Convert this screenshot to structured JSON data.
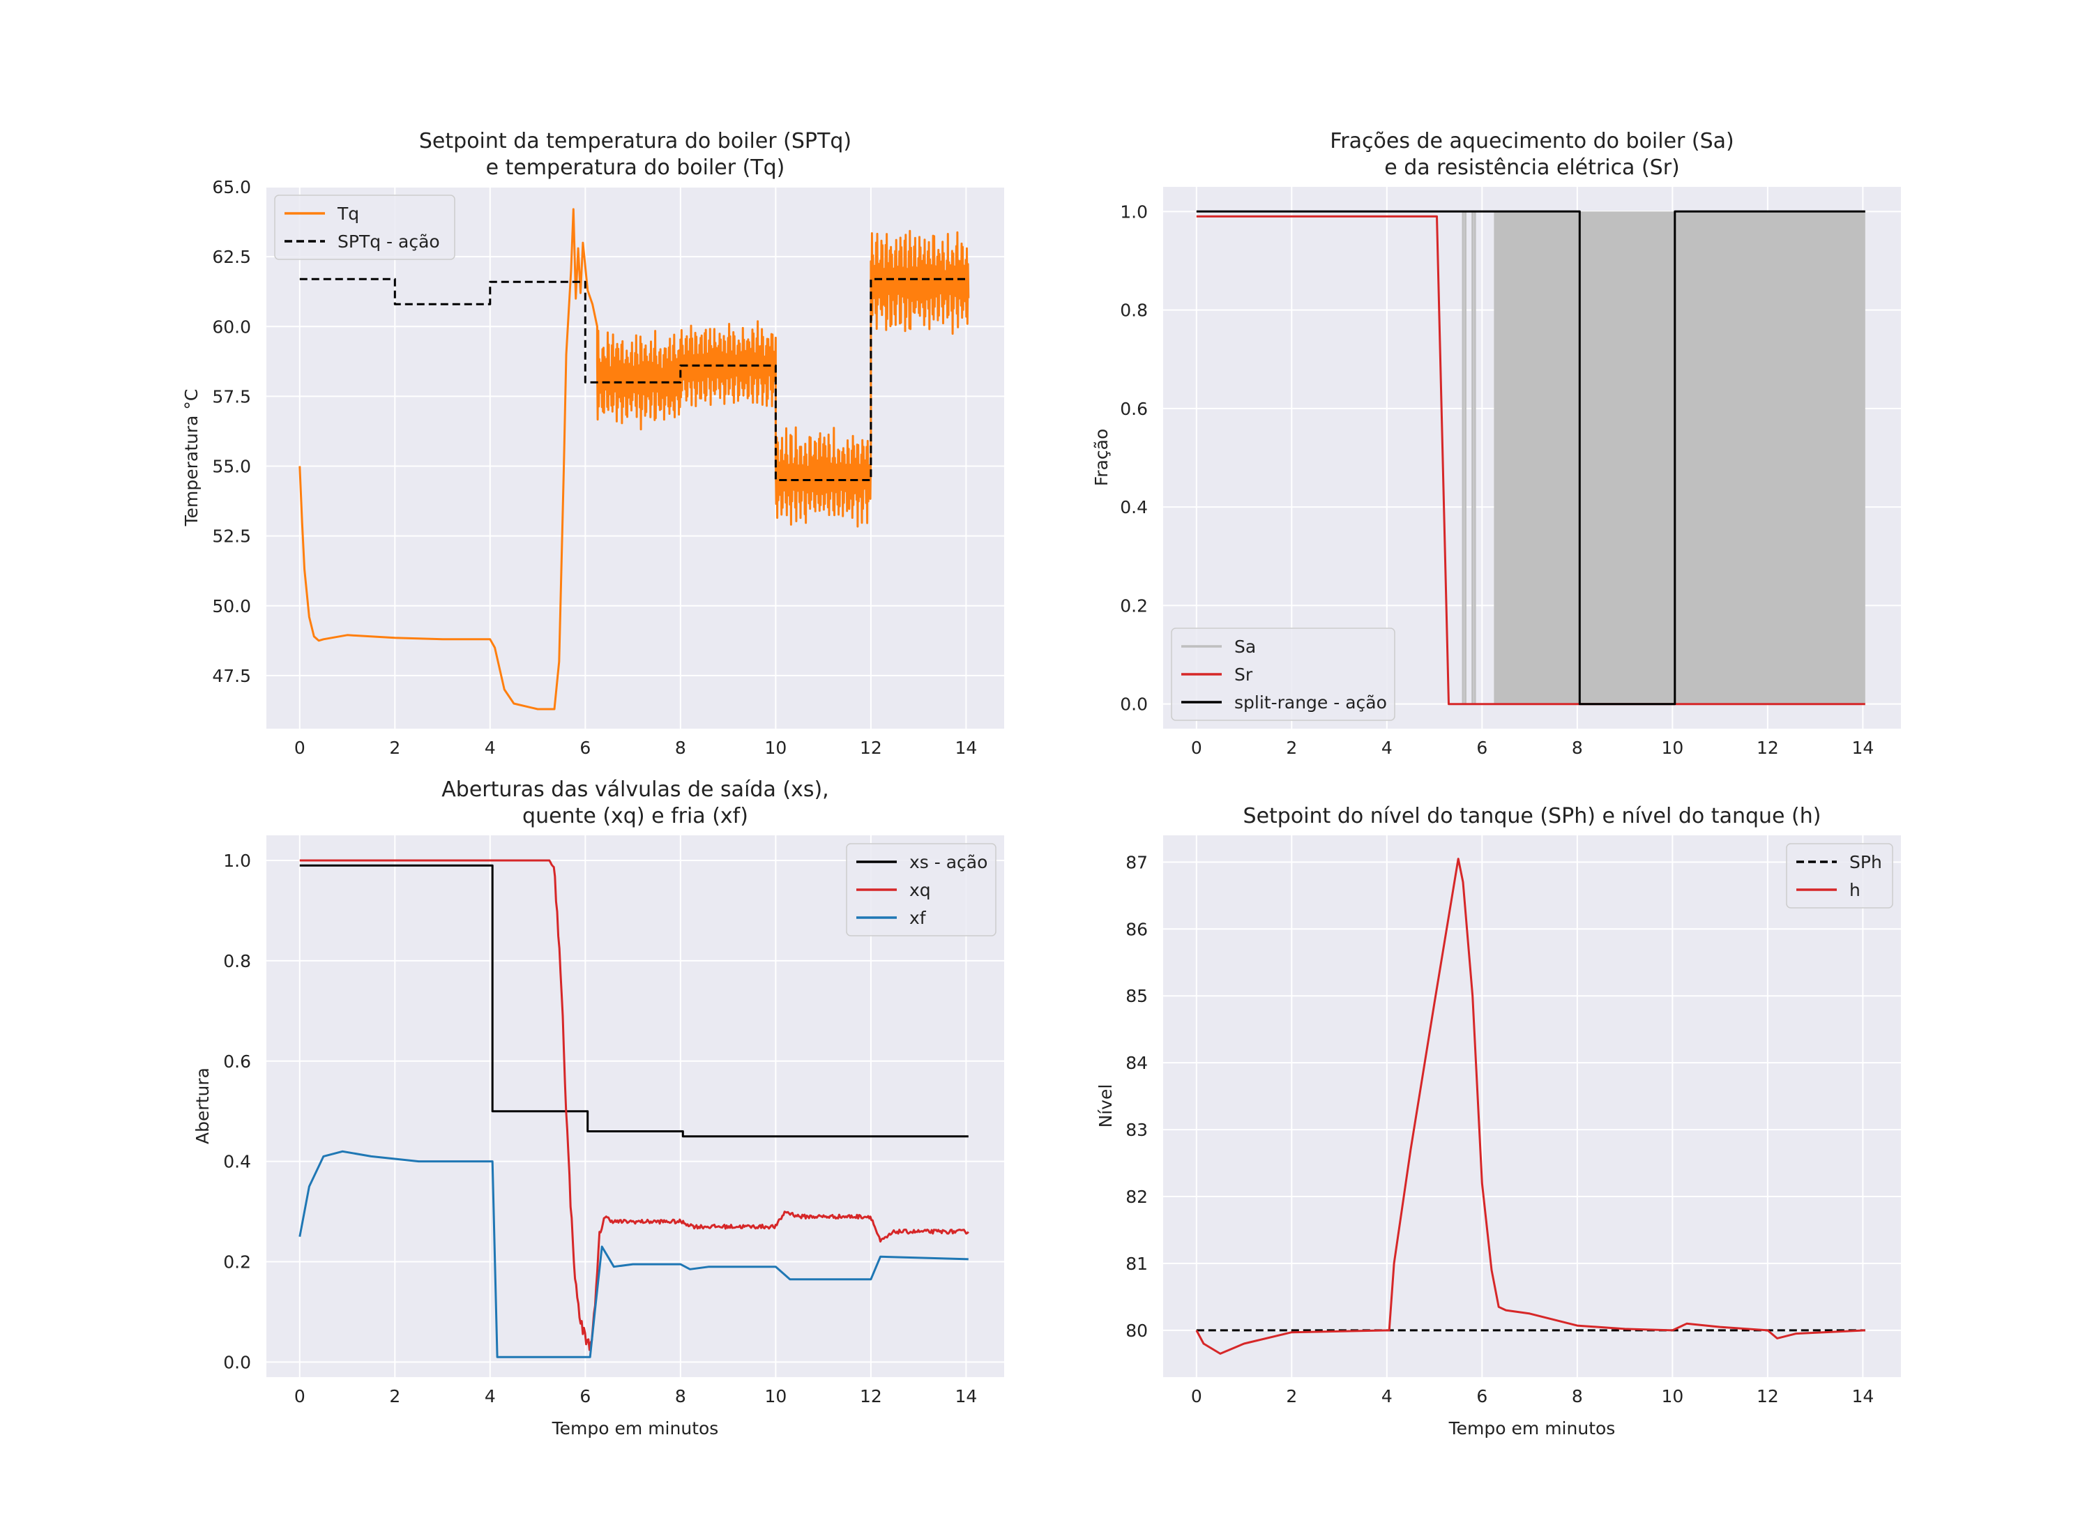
{
  "chart_data": [
    {
      "type": "line",
      "title": [
        "Setpoint da temperatura do boiler (SPTq)",
        "e temperatura do boiler (Tq)"
      ],
      "xlabel": "",
      "ylabel": "Temperatura °C",
      "xlim": [
        -0.7,
        14.8
      ],
      "ylim": [
        45.6,
        65.0
      ],
      "xticks": [
        0,
        2,
        4,
        6,
        8,
        10,
        12,
        14
      ],
      "yticks": [
        47.5,
        50.0,
        52.5,
        55.0,
        57.5,
        60.0,
        62.5,
        65.0
      ],
      "ytick_labels": [
        "47.5",
        "50.0",
        "52.5",
        "55.0",
        "57.5",
        "60.0",
        "62.5",
        "65.0"
      ],
      "grid": true,
      "legend": "upper left",
      "series": [
        {
          "name": "Tq",
          "color": "#ff7f0e",
          "style": "solid",
          "points": [
            [
              0,
              55
            ],
            [
              0.05,
              53
            ],
            [
              0.1,
              51.3
            ],
            [
              0.2,
              49.6
            ],
            [
              0.3,
              48.9
            ],
            [
              0.4,
              48.75
            ],
            [
              0.5,
              48.8
            ],
            [
              1,
              48.95
            ],
            [
              2,
              48.85
            ],
            [
              3,
              48.8
            ],
            [
              4,
              48.8
            ],
            [
              4.1,
              48.5
            ],
            [
              4.3,
              47
            ],
            [
              4.5,
              46.5
            ],
            [
              5,
              46.3
            ],
            [
              5.35,
              46.3
            ],
            [
              5.45,
              48
            ],
            [
              5.55,
              55
            ],
            [
              5.6,
              59
            ],
            [
              5.7,
              62
            ],
            [
              5.75,
              64.2
            ],
            [
              5.8,
              61
            ],
            [
              5.85,
              62.8
            ],
            [
              5.9,
              61.2
            ],
            [
              5.95,
              63
            ],
            [
              6.05,
              61.3
            ],
            [
              6.15,
              60.8
            ],
            [
              6.25,
              60
            ]
          ],
          "noise": [
            {
              "from": 6.25,
              "to": 8.0,
              "center": 58.1,
              "amp": 1.8
            },
            {
              "from": 8.0,
              "to": 10.0,
              "center": 58.6,
              "amp": 1.6
            },
            {
              "from": 10.0,
              "to": 12.0,
              "center": 54.6,
              "amp": 1.8
            },
            {
              "from": 12.0,
              "to": 14.05,
              "center": 61.6,
              "amp": 1.9
            }
          ]
        },
        {
          "name": "SPTq - ação",
          "color": "#000000",
          "style": "dashed",
          "step": [
            [
              0,
              61.7
            ],
            [
              2,
              60.8
            ],
            [
              4,
              61.6
            ],
            [
              6,
              58.0
            ],
            [
              8,
              58.6
            ],
            [
              10,
              54.5
            ],
            [
              12,
              61.7
            ],
            [
              14.05,
              61.7
            ]
          ]
        }
      ]
    },
    {
      "type": "line",
      "title": [
        "Frações de aquecimento do boiler (Sa)",
        "e da resistência elétrica (Sr)"
      ],
      "xlabel": "",
      "ylabel": "Fração",
      "xlim": [
        -0.7,
        14.8
      ],
      "ylim": [
        -0.05,
        1.05
      ],
      "xticks": [
        0,
        2,
        4,
        6,
        8,
        10,
        12,
        14
      ],
      "yticks": [
        0.0,
        0.2,
        0.4,
        0.6,
        0.8,
        1.0
      ],
      "ytick_labels": [
        "0.0",
        "0.2",
        "0.4",
        "0.6",
        "0.8",
        "1.0"
      ],
      "grid": true,
      "legend": "lower left",
      "series": [
        {
          "name": "Sa",
          "color": "#bfbfbf",
          "style": "solid",
          "filled": [
            [
              6.25,
              14.05
            ]
          ],
          "spikes": [
            5.6,
            5.65,
            5.8,
            5.85
          ]
        },
        {
          "name": "Sr",
          "color": "#d62728",
          "style": "solid",
          "points": [
            [
              0,
              0.99
            ],
            [
              5.05,
              0.99
            ],
            [
              5.3,
              0.0
            ],
            [
              14.05,
              0.0
            ]
          ]
        },
        {
          "name": "split-range - ação",
          "color": "#000000",
          "style": "solid",
          "step": [
            [
              0,
              1.0
            ],
            [
              8.05,
              0.0
            ],
            [
              10.05,
              1.0
            ],
            [
              14.05,
              1.0
            ]
          ]
        }
      ]
    },
    {
      "type": "line",
      "title": [
        "Aberturas das válvulas de saída (xs),",
        "quente (xq) e fria (xf)"
      ],
      "xlabel": "Tempo em minutos",
      "ylabel": "Abertura",
      "xlim": [
        -0.7,
        14.8
      ],
      "ylim": [
        -0.03,
        1.05
      ],
      "xticks": [
        0,
        2,
        4,
        6,
        8,
        10,
        12,
        14
      ],
      "yticks": [
        0.0,
        0.2,
        0.4,
        0.6,
        0.8,
        1.0
      ],
      "ytick_labels": [
        "0.0",
        "0.2",
        "0.4",
        "0.6",
        "0.8",
        "1.0"
      ],
      "grid": true,
      "legend": "upper right",
      "series": [
        {
          "name": "xs - ação",
          "color": "#000000",
          "style": "solid",
          "step": [
            [
              0,
              0.99
            ],
            [
              4.05,
              0.5
            ],
            [
              6.05,
              0.46
            ],
            [
              8.05,
              0.45
            ],
            [
              14.05,
              0.45
            ]
          ]
        },
        {
          "name": "xq",
          "color": "#d62728",
          "style": "solid",
          "points": [
            [
              0,
              1.0
            ],
            [
              5.25,
              1.0
            ],
            [
              5.35,
              0.98
            ],
            [
              5.5,
              0.75
            ],
            [
              5.6,
              0.5
            ],
            [
              5.7,
              0.3
            ],
            [
              5.8,
              0.15
            ],
            [
              5.9,
              0.08
            ],
            [
              6.0,
              0.05
            ],
            [
              6.1,
              0.03
            ],
            [
              6.2,
              0.1
            ],
            [
              6.3,
              0.25
            ],
            [
              6.4,
              0.29
            ],
            [
              6.6,
              0.28
            ],
            [
              8.0,
              0.28
            ],
            [
              8.3,
              0.27
            ],
            [
              10.0,
              0.27
            ],
            [
              10.2,
              0.3
            ],
            [
              10.5,
              0.29
            ],
            [
              12.0,
              0.29
            ],
            [
              12.2,
              0.24
            ],
            [
              12.5,
              0.26
            ],
            [
              14.05,
              0.26
            ]
          ],
          "jitter": 0.004
        },
        {
          "name": "xf",
          "color": "#1f77b4",
          "style": "solid",
          "points": [
            [
              0,
              0.25
            ],
            [
              0.2,
              0.35
            ],
            [
              0.5,
              0.41
            ],
            [
              0.9,
              0.42
            ],
            [
              1.5,
              0.41
            ],
            [
              2.5,
              0.4
            ],
            [
              4.05,
              0.4
            ],
            [
              4.15,
              0.01
            ],
            [
              6.1,
              0.01
            ],
            [
              6.2,
              0.1
            ],
            [
              6.35,
              0.23
            ],
            [
              6.6,
              0.19
            ],
            [
              7.0,
              0.195
            ],
            [
              8.0,
              0.195
            ],
            [
              8.2,
              0.185
            ],
            [
              8.6,
              0.19
            ],
            [
              10.0,
              0.19
            ],
            [
              10.3,
              0.165
            ],
            [
              10.7,
              0.165
            ],
            [
              12.0,
              0.165
            ],
            [
              12.2,
              0.21
            ],
            [
              14.05,
              0.205
            ]
          ]
        }
      ]
    },
    {
      "type": "line",
      "title": [
        "Setpoint do nível do tanque (SPh) e nível do tanque (h)"
      ],
      "xlabel": "Tempo em minutos",
      "ylabel": "Nível",
      "xlim": [
        -0.7,
        14.8
      ],
      "ylim": [
        79.3,
        87.4
      ],
      "xticks": [
        0,
        2,
        4,
        6,
        8,
        10,
        12,
        14
      ],
      "yticks": [
        80,
        81,
        82,
        83,
        84,
        85,
        86,
        87
      ],
      "ytick_labels": [
        "80",
        "81",
        "82",
        "83",
        "84",
        "85",
        "86",
        "87"
      ],
      "grid": true,
      "legend": "upper right",
      "series": [
        {
          "name": "SPh",
          "color": "#000000",
          "style": "dashed",
          "points": [
            [
              0,
              80
            ],
            [
              14.05,
              80
            ]
          ]
        },
        {
          "name": "h",
          "color": "#d62728",
          "style": "solid",
          "points": [
            [
              0,
              80
            ],
            [
              0.15,
              79.8
            ],
            [
              0.5,
              79.65
            ],
            [
              1.0,
              79.8
            ],
            [
              2.0,
              79.97
            ],
            [
              4.05,
              80
            ],
            [
              4.15,
              81
            ],
            [
              4.5,
              82.7
            ],
            [
              5.0,
              84.9
            ],
            [
              5.5,
              87.05
            ],
            [
              5.6,
              86.7
            ],
            [
              5.8,
              85
            ],
            [
              6.0,
              82.2
            ],
            [
              6.2,
              80.9
            ],
            [
              6.35,
              80.35
            ],
            [
              6.5,
              80.3
            ],
            [
              7.0,
              80.25
            ],
            [
              8.0,
              80.07
            ],
            [
              9.0,
              80.02
            ],
            [
              10.0,
              80.0
            ],
            [
              10.3,
              80.1
            ],
            [
              11.0,
              80.05
            ],
            [
              12.0,
              80.0
            ],
            [
              12.2,
              79.88
            ],
            [
              12.6,
              79.95
            ],
            [
              14.05,
              80.0
            ]
          ]
        }
      ]
    }
  ]
}
